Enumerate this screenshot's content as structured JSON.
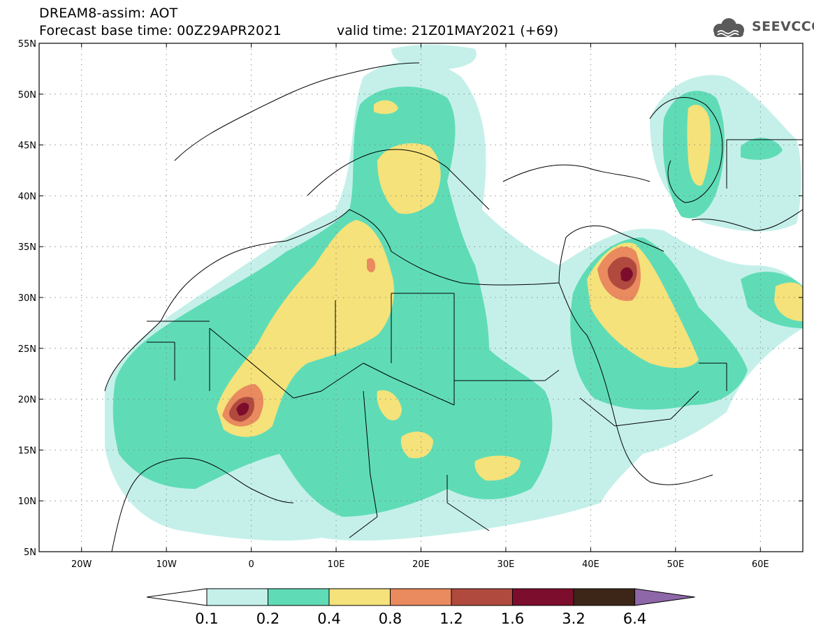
{
  "header": {
    "title_line1": "DREAM8-assim: AOT",
    "title_line2": "Forecast base time: 00Z29APR2021",
    "valid_time": "valid time: 21Z01MAY2021 (+69)",
    "logo_text": "SEEVCCC",
    "logo_icon": "cloud-icon"
  },
  "map": {
    "lat_range": [
      5,
      55
    ],
    "lon_range": [
      -25,
      65
    ],
    "lat_labels": [
      "55N",
      "50N",
      "45N",
      "40N",
      "35N",
      "30N",
      "25N",
      "20N",
      "15N",
      "10N",
      "5N"
    ],
    "lon_labels": [
      "20W",
      "10W",
      "0",
      "10E",
      "20E",
      "30E",
      "40E",
      "50E",
      "60E"
    ],
    "grid": true,
    "grid_style": "dotted"
  },
  "colorbar": {
    "labels": [
      "0.1",
      "0.2",
      "0.4",
      "0.8",
      "1.2",
      "1.6",
      "3.2",
      "6.4"
    ],
    "colors": [
      "#ffffff",
      "#c5f0ea",
      "#5fdcb6",
      "#f5e27a",
      "#e98a5f",
      "#b04a3e",
      "#7d0d2c",
      "#3d2617",
      "#8e67a8"
    ]
  }
}
